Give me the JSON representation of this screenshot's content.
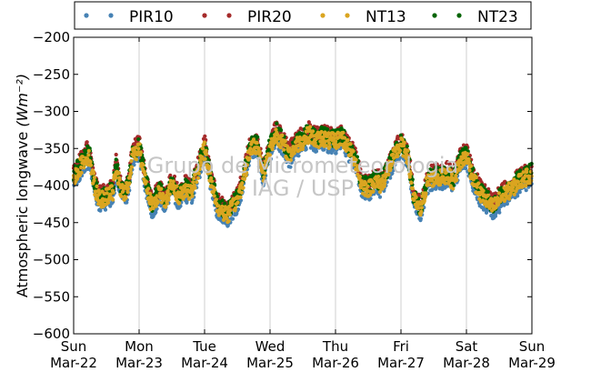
{
  "chart_data": {
    "type": "scatter",
    "ylabel": "Atmospheric longwave",
    "ylabel_unit": "(Wm⁻²)",
    "ylim": [
      -600,
      -200
    ],
    "y_ticks": [
      -200,
      -250,
      -300,
      -350,
      -400,
      -450,
      -500,
      -550,
      -600
    ],
    "x_ticks": [
      {
        "day": "Sun",
        "date": "Mar-22"
      },
      {
        "day": "Mon",
        "date": "Mar-23"
      },
      {
        "day": "Tue",
        "date": "Mar-24"
      },
      {
        "day": "Wed",
        "date": "Mar-25"
      },
      {
        "day": "Thu",
        "date": "Mar-26"
      },
      {
        "day": "Fri",
        "date": "Mar-27"
      },
      {
        "day": "Sat",
        "date": "Mar-28"
      },
      {
        "day": "Sun",
        "date": "Mar-29"
      }
    ],
    "xlim": [
      0,
      7
    ],
    "grid": "vertical",
    "legend_position": "top",
    "watermark": [
      "Grupo de Micrometeorologia",
      "IAG / USP"
    ],
    "series": [
      {
        "name": "PIR10",
        "color": "#4682b4",
        "offset": -6
      },
      {
        "name": "PIR20",
        "color": "#a52a2a",
        "offset": 8
      },
      {
        "name": "NT13",
        "color": "#daa520",
        "offset": 0
      },
      {
        "name": "NT23",
        "color": "#006400",
        "offset": 4
      }
    ],
    "base_curve": [
      [
        0.0,
        -390
      ],
      [
        0.1,
        -375
      ],
      [
        0.2,
        -360
      ],
      [
        0.25,
        -365
      ],
      [
        0.33,
        -405
      ],
      [
        0.4,
        -420
      ],
      [
        0.5,
        -415
      ],
      [
        0.6,
        -410
      ],
      [
        0.65,
        -375
      ],
      [
        0.72,
        -408
      ],
      [
        0.8,
        -410
      ],
      [
        0.85,
        -395
      ],
      [
        0.9,
        -360
      ],
      [
        1.0,
        -350
      ],
      [
        1.1,
        -395
      ],
      [
        1.2,
        -430
      ],
      [
        1.3,
        -410
      ],
      [
        1.4,
        -420
      ],
      [
        1.5,
        -400
      ],
      [
        1.6,
        -415
      ],
      [
        1.7,
        -405
      ],
      [
        1.8,
        -410
      ],
      [
        1.9,
        -380
      ],
      [
        2.0,
        -350
      ],
      [
        2.1,
        -395
      ],
      [
        2.2,
        -430
      ],
      [
        2.35,
        -440
      ],
      [
        2.5,
        -420
      ],
      [
        2.6,
        -390
      ],
      [
        2.7,
        -350
      ],
      [
        2.8,
        -345
      ],
      [
        2.9,
        -385
      ],
      [
        3.0,
        -350
      ],
      [
        3.1,
        -330
      ],
      [
        3.2,
        -345
      ],
      [
        3.3,
        -360
      ],
      [
        3.4,
        -345
      ],
      [
        3.5,
        -340
      ],
      [
        3.6,
        -330
      ],
      [
        3.7,
        -340
      ],
      [
        3.8,
        -335
      ],
      [
        3.9,
        -340
      ],
      [
        4.0,
        -340
      ],
      [
        4.1,
        -335
      ],
      [
        4.2,
        -350
      ],
      [
        4.3,
        -365
      ],
      [
        4.4,
        -400
      ],
      [
        4.5,
        -405
      ],
      [
        4.6,
        -395
      ],
      [
        4.7,
        -400
      ],
      [
        4.8,
        -380
      ],
      [
        4.9,
        -360
      ],
      [
        5.0,
        -345
      ],
      [
        5.1,
        -360
      ],
      [
        5.2,
        -420
      ],
      [
        5.3,
        -435
      ],
      [
        5.4,
        -395
      ],
      [
        5.5,
        -390
      ],
      [
        5.6,
        -390
      ],
      [
        5.7,
        -385
      ],
      [
        5.8,
        -395
      ],
      [
        5.9,
        -370
      ],
      [
        6.0,
        -360
      ],
      [
        6.1,
        -390
      ],
      [
        6.2,
        -410
      ],
      [
        6.3,
        -420
      ],
      [
        6.4,
        -430
      ],
      [
        6.5,
        -420
      ],
      [
        6.6,
        -410
      ],
      [
        6.7,
        -405
      ],
      [
        6.8,
        -395
      ],
      [
        6.9,
        -390
      ],
      [
        7.0,
        -385
      ]
    ]
  }
}
